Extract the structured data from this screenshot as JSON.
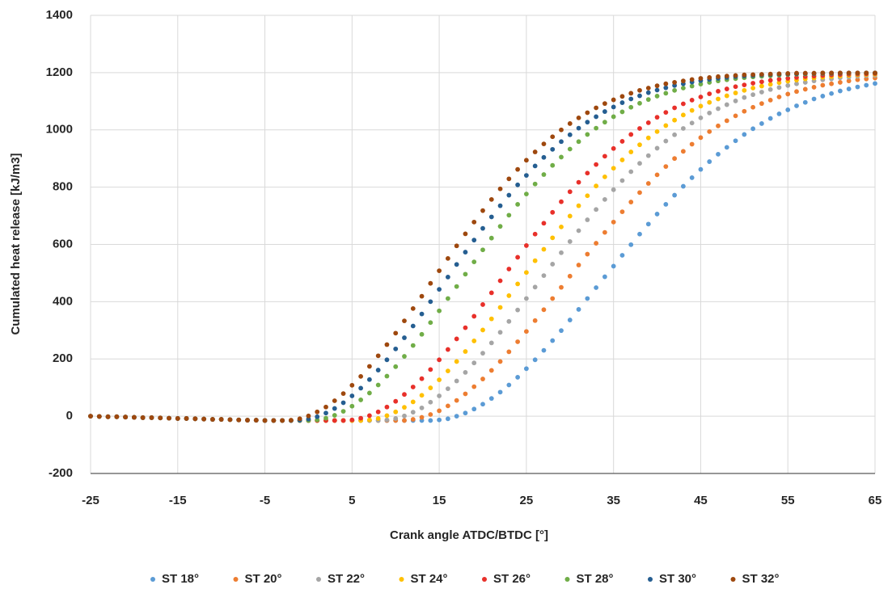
{
  "chart_data": {
    "type": "scatter",
    "xlabel": "Crank angle ATDC/BTDC [°]",
    "ylabel": "Cumulated heat release [kJ/m3]",
    "xlim": [
      -25,
      65
    ],
    "xticks": [
      -25,
      -15,
      -5,
      5,
      15,
      25,
      35,
      45,
      55,
      65
    ],
    "ylim": [
      -200,
      1400
    ],
    "yticks": [
      -200,
      0,
      200,
      400,
      600,
      800,
      1000,
      1200,
      1400
    ],
    "grid": true,
    "legend": "bottom",
    "x": [
      -25,
      -24,
      -23,
      -22,
      -21,
      -20,
      -19,
      -18,
      -17,
      -16,
      -15,
      -14,
      -13,
      -12,
      -11,
      -10,
      -9,
      -8,
      -7,
      -6,
      -5,
      -4,
      -3,
      -2,
      -1,
      0,
      1,
      2,
      3,
      4,
      5,
      6,
      7,
      8,
      9,
      10,
      11,
      12,
      13,
      14,
      15,
      16,
      17,
      18,
      19,
      20,
      21,
      22,
      23,
      24,
      25,
      26,
      27,
      28,
      29,
      30,
      31,
      32,
      33,
      34,
      35,
      36,
      37,
      38,
      39,
      40,
      41,
      42,
      43,
      44,
      45,
      46,
      47,
      48,
      49,
      50,
      51,
      52,
      53,
      54,
      55,
      56,
      57,
      58,
      59,
      60,
      61,
      62,
      63,
      64,
      65
    ],
    "series": [
      {
        "name": "ST 18°",
        "color": "#5b9bd5",
        "values": [
          0,
          -1,
          -2,
          -2,
          -3,
          -4,
          -5,
          -5,
          -6,
          -7,
          -8,
          -8,
          -9,
          -10,
          -11,
          -11,
          -12,
          -13,
          -14,
          -14,
          -15,
          -15,
          -15,
          -15,
          -15,
          -15,
          -15,
          -15,
          -15,
          -15,
          -15,
          -15,
          -15,
          -15,
          -15,
          -15,
          -15,
          -15,
          -15,
          -15,
          -13,
          -9,
          0,
          11,
          25,
          42,
          62,
          84,
          109,
          136,
          166,
          197,
          230,
          264,
          299,
          336,
          373,
          411,
          449,
          487,
          524,
          562,
          599,
          636,
          671,
          706,
          740,
          772,
          803,
          833,
          862,
          889,
          915,
          939,
          962,
          984,
          1004,
          1022,
          1040,
          1056,
          1070,
          1084,
          1096,
          1108,
          1118,
          1127,
          1136,
          1143,
          1150,
          1156,
          1162
        ]
      },
      {
        "name": "ST 20°",
        "color": "#ed7d31",
        "values": [
          0,
          -1,
          -2,
          -2,
          -3,
          -4,
          -5,
          -5,
          -6,
          -7,
          -8,
          -8,
          -9,
          -10,
          -11,
          -11,
          -12,
          -13,
          -14,
          -14,
          -15,
          -15,
          -15,
          -15,
          -15,
          -15,
          -15,
          -15,
          -15,
          -15,
          -15,
          -15,
          -15,
          -15,
          -15,
          -15,
          -15,
          -11,
          -4,
          6,
          19,
          36,
          55,
          78,
          103,
          130,
          160,
          191,
          225,
          260,
          296,
          334,
          372,
          411,
          450,
          489,
          528,
          566,
          604,
          642,
          678,
          714,
          748,
          781,
          813,
          843,
          872,
          900,
          925,
          950,
          973,
          994,
          1014,
          1032,
          1049,
          1065,
          1079,
          1092,
          1104,
          1115,
          1125,
          1134,
          1142,
          1149,
          1156,
          1161,
          1166,
          1171,
          1175,
          1178,
          1181
        ]
      },
      {
        "name": "ST 22°",
        "color": "#a5a5a5",
        "values": [
          0,
          -1,
          -2,
          -2,
          -3,
          -4,
          -5,
          -5,
          -6,
          -7,
          -8,
          -8,
          -9,
          -10,
          -11,
          -11,
          -12,
          -13,
          -14,
          -14,
          -15,
          -15,
          -15,
          -15,
          -15,
          -15,
          -15,
          -15,
          -15,
          -15,
          -15,
          -15,
          -15,
          -15,
          -13,
          -8,
          1,
          14,
          29,
          49,
          71,
          96,
          123,
          153,
          186,
          220,
          256,
          293,
          331,
          371,
          411,
          451,
          491,
          531,
          571,
          610,
          648,
          686,
          722,
          757,
          791,
          823,
          854,
          883,
          910,
          936,
          961,
          983,
          1005,
          1024,
          1042,
          1059,
          1074,
          1088,
          1101,
          1113,
          1123,
          1132,
          1141,
          1148,
          1155,
          1161,
          1166,
          1171,
          1175,
          1178,
          1182,
          1184,
          1187,
          1189,
          1190
        ]
      },
      {
        "name": "ST 24°",
        "color": "#ffc000",
        "values": [
          0,
          -1,
          -2,
          -2,
          -3,
          -4,
          -5,
          -5,
          -6,
          -7,
          -8,
          -8,
          -9,
          -10,
          -11,
          -11,
          -12,
          -13,
          -14,
          -14,
          -15,
          -15,
          -15,
          -15,
          -15,
          -15,
          -15,
          -15,
          -15,
          -15,
          -15,
          -15,
          -13,
          -8,
          2,
          15,
          31,
          50,
          73,
          99,
          127,
          158,
          191,
          226,
          263,
          301,
          340,
          380,
          421,
          462,
          502,
          543,
          583,
          623,
          661,
          699,
          735,
          770,
          804,
          836,
          866,
          895,
          923,
          948,
          972,
          994,
          1015,
          1034,
          1052,
          1068,
          1083,
          1096,
          1108,
          1119,
          1129,
          1138,
          1146,
          1153,
          1159,
          1165,
          1170,
          1174,
          1178,
          1181,
          1184,
          1186,
          1188,
          1190,
          1192,
          1193,
          1194
        ]
      },
      {
        "name": "ST 26°",
        "color": "#e8302a",
        "values": [
          0,
          -1,
          -2,
          -2,
          -3,
          -4,
          -5,
          -5,
          -6,
          -7,
          -8,
          -8,
          -9,
          -10,
          -11,
          -11,
          -12,
          -13,
          -14,
          -14,
          -15,
          -15,
          -15,
          -15,
          -15,
          -15,
          -15,
          -15,
          -15,
          -15,
          -13,
          -7,
          2,
          15,
          32,
          52,
          76,
          102,
          131,
          163,
          197,
          233,
          270,
          309,
          349,
          390,
          431,
          473,
          514,
          555,
          596,
          636,
          674,
          712,
          749,
          784,
          817,
          849,
          879,
          908,
          935,
          960,
          984,
          1005,
          1025,
          1044,
          1061,
          1077,
          1091,
          1104,
          1115,
          1126,
          1135,
          1143,
          1151,
          1157,
          1163,
          1168,
          1173,
          1177,
          1180,
          1183,
          1186,
          1188,
          1190,
          1192,
          1193,
          1194,
          1195,
          1196,
          1197
        ]
      },
      {
        "name": "ST 28°",
        "color": "#70ad47",
        "values": [
          0,
          -1,
          -2,
          -2,
          -3,
          -4,
          -5,
          -5,
          -6,
          -7,
          -8,
          -8,
          -9,
          -10,
          -11,
          -11,
          -12,
          -13,
          -14,
          -14,
          -15,
          -15,
          -15,
          -15,
          -15,
          -15,
          -13,
          -7,
          3,
          17,
          35,
          57,
          81,
          109,
          140,
          173,
          209,
          247,
          286,
          327,
          368,
          411,
          453,
          496,
          539,
          581,
          622,
          663,
          702,
          740,
          776,
          811,
          844,
          876,
          905,
          933,
          959,
          984,
          1006,
          1027,
          1046,
          1063,
          1079,
          1093,
          1106,
          1118,
          1128,
          1138,
          1146,
          1153,
          1160,
          1166,
          1171,
          1175,
          1179,
          1182,
          1185,
          1187,
          1189,
          1191,
          1193,
          1194,
          1195,
          1196,
          1197,
          1197,
          1198,
          1198,
          1198,
          1199,
          1199
        ]
      },
      {
        "name": "ST 30°",
        "color": "#255e91",
        "values": [
          0,
          -1,
          -2,
          -2,
          -3,
          -4,
          -5,
          -5,
          -6,
          -7,
          -8,
          -8,
          -9,
          -10,
          -11,
          -11,
          -12,
          -13,
          -14,
          -14,
          -15,
          -15,
          -15,
          -15,
          -14,
          -10,
          -2,
          11,
          27,
          47,
          71,
          98,
          128,
          161,
          197,
          235,
          274,
          315,
          357,
          400,
          443,
          486,
          530,
          573,
          615,
          656,
          696,
          735,
          772,
          808,
          841,
          874,
          904,
          932,
          959,
          983,
          1006,
          1027,
          1046,
          1064,
          1080,
          1095,
          1108,
          1119,
          1130,
          1139,
          1147,
          1155,
          1161,
          1167,
          1172,
          1176,
          1180,
          1183,
          1186,
          1188,
          1190,
          1192,
          1193,
          1194,
          1195,
          1196,
          1197,
          1197,
          1198,
          1198,
          1198,
          1199,
          1199,
          1199,
          1199
        ]
      },
      {
        "name": "ST 32°",
        "color": "#9e480e",
        "values": [
          0,
          -1,
          -2,
          -2,
          -3,
          -4,
          -5,
          -5,
          -6,
          -7,
          -8,
          -8,
          -9,
          -10,
          -11,
          -11,
          -12,
          -13,
          -14,
          -14,
          -15,
          -15,
          -15,
          -14,
          -9,
          1,
          15,
          32,
          54,
          79,
          108,
          139,
          174,
          211,
          250,
          290,
          333,
          376,
          419,
          464,
          508,
          551,
          595,
          637,
          678,
          718,
          757,
          794,
          829,
          862,
          894,
          923,
          951,
          976,
          1000,
          1022,
          1042,
          1060,
          1077,
          1092,
          1105,
          1117,
          1128,
          1138,
          1146,
          1154,
          1161,
          1166,
          1171,
          1176,
          1180,
          1183,
          1186,
          1188,
          1190,
          1192,
          1193,
          1194,
          1195,
          1196,
          1197,
          1198,
          1198,
          1198,
          1199,
          1199,
          1199,
          1199,
          1199,
          1199,
          1199
        ]
      }
    ]
  }
}
